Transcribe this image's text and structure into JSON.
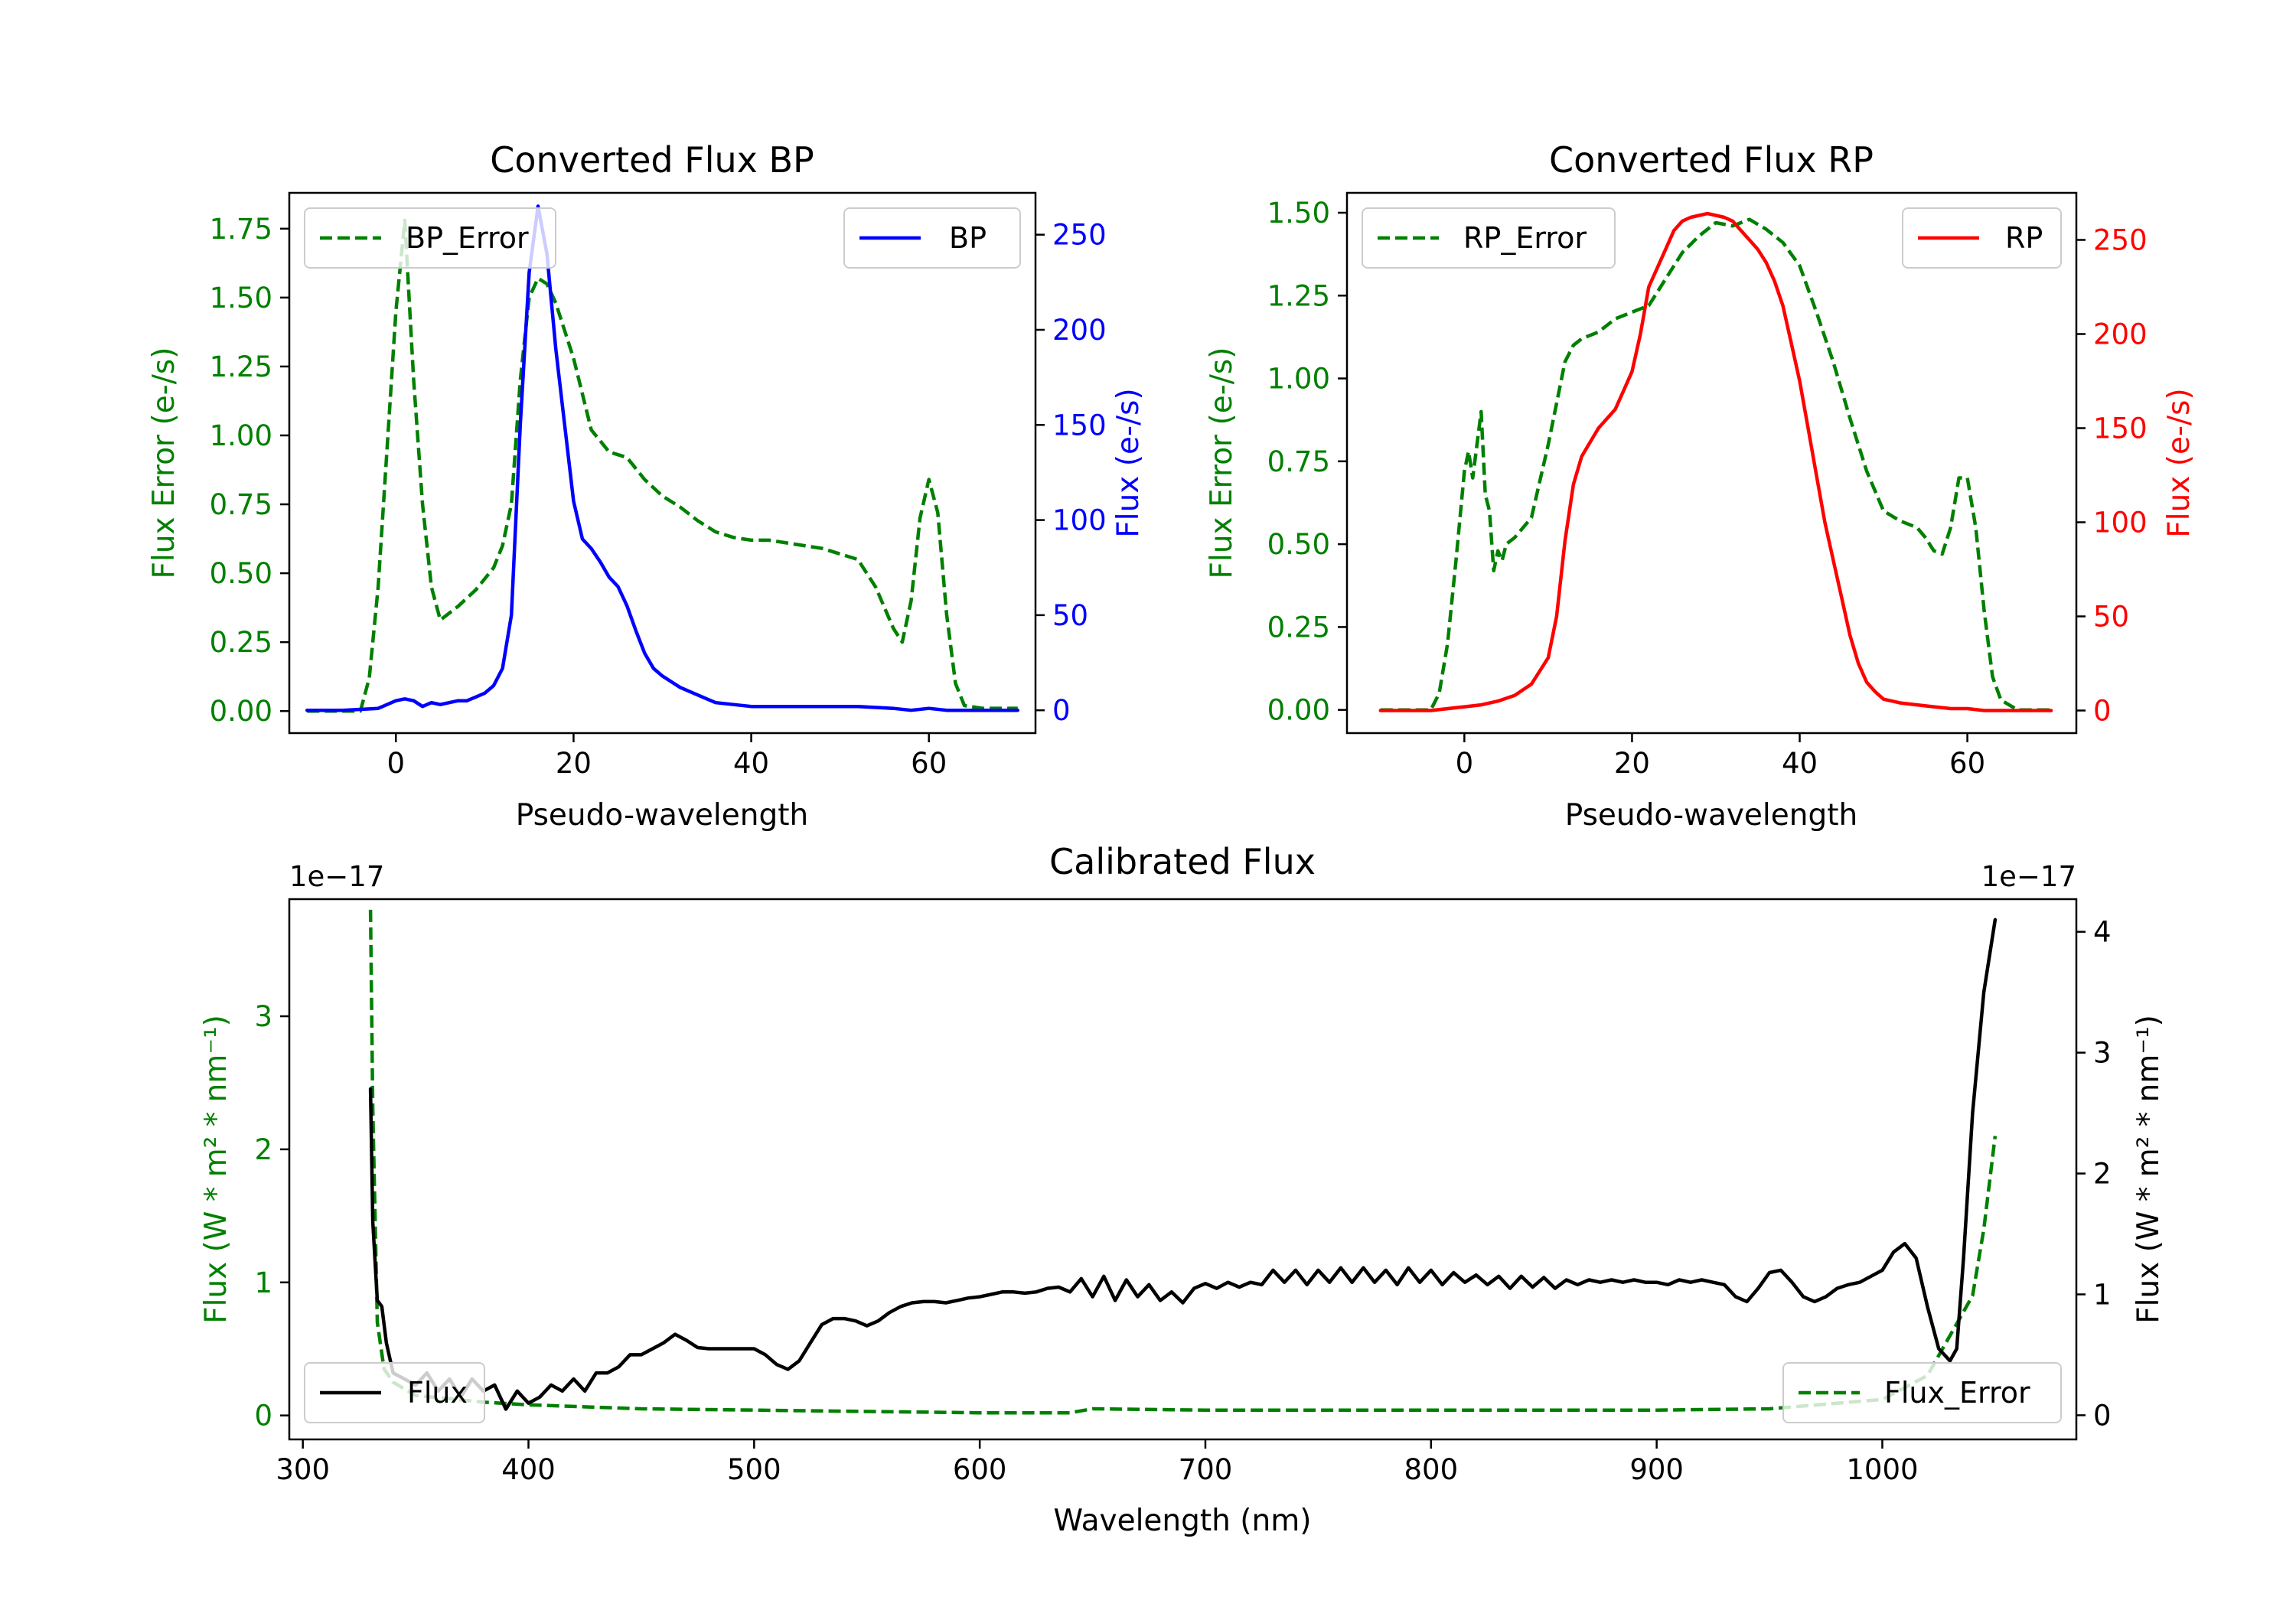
{
  "chart_data": [
    {
      "id": "bp",
      "type": "line",
      "title": "Converted Flux BP",
      "xlabel": "Pseudo-wavelength",
      "xlim": [
        -12,
        72
      ],
      "xticks": [
        0,
        20,
        40,
        60
      ],
      "left_axis": {
        "label": "Flux Error (e-/s)",
        "color": "#008000",
        "ylim": [
          -0.08,
          1.88
        ],
        "ticks": [
          0.0,
          0.25,
          0.5,
          0.75,
          1.0,
          1.25,
          1.5,
          1.75
        ],
        "tick_labels": [
          "0.00",
          "0.25",
          "0.50",
          "0.75",
          "1.00",
          "1.25",
          "1.50",
          "1.75"
        ]
      },
      "right_axis": {
        "label": "Flux (e-/s)",
        "color": "#0000ff",
        "ylim": [
          -12,
          272
        ],
        "ticks": [
          0,
          50,
          100,
          150,
          200,
          250
        ],
        "tick_labels": [
          "0",
          "50",
          "100",
          "150",
          "200",
          "250"
        ]
      },
      "series": [
        {
          "name": "BP_Error",
          "axis": "left",
          "color": "#008000",
          "dash": true,
          "x": [
            -10,
            -4,
            -3,
            -2,
            -1,
            0,
            1,
            2,
            3,
            4,
            5,
            7,
            9,
            11,
            12,
            13,
            14,
            15,
            16,
            17,
            18,
            19,
            20,
            21,
            22,
            23,
            24,
            25,
            26,
            27,
            28,
            30,
            32,
            34,
            36,
            38,
            40,
            42,
            44,
            46,
            48,
            50,
            52,
            54,
            56,
            57,
            58,
            59,
            60,
            61,
            62,
            63,
            64,
            66,
            68,
            70
          ],
          "values": [
            0.0,
            0.0,
            0.12,
            0.45,
            0.95,
            1.45,
            1.78,
            1.2,
            0.75,
            0.45,
            0.33,
            0.38,
            0.44,
            0.52,
            0.6,
            0.75,
            1.2,
            1.5,
            1.57,
            1.55,
            1.48,
            1.38,
            1.28,
            1.15,
            1.02,
            0.98,
            0.94,
            0.93,
            0.92,
            0.88,
            0.84,
            0.78,
            0.74,
            0.69,
            0.65,
            0.63,
            0.62,
            0.62,
            0.61,
            0.6,
            0.59,
            0.57,
            0.55,
            0.45,
            0.3,
            0.25,
            0.4,
            0.7,
            0.84,
            0.72,
            0.35,
            0.1,
            0.02,
            0.01,
            0.01,
            0.01
          ]
        },
        {
          "name": "BP",
          "axis": "right",
          "color": "#0000ff",
          "dash": false,
          "x": [
            -10,
            -6,
            -2,
            0,
            1,
            2,
            3,
            4,
            5,
            6,
            7,
            8,
            9,
            10,
            11,
            12,
            13,
            14,
            15,
            16,
            17,
            18,
            19,
            20,
            21,
            22,
            23,
            24,
            25,
            26,
            27,
            28,
            29,
            30,
            31,
            32,
            33,
            34,
            35,
            36,
            38,
            40,
            44,
            48,
            52,
            56,
            58,
            60,
            62,
            64,
            66,
            68,
            70
          ],
          "values": [
            0,
            0,
            1,
            5,
            6,
            5,
            2,
            4,
            3,
            4,
            5,
            5,
            7,
            9,
            13,
            22,
            50,
            150,
            230,
            265,
            240,
            190,
            150,
            110,
            90,
            85,
            78,
            70,
            65,
            55,
            42,
            30,
            22,
            18,
            15,
            12,
            10,
            8,
            6,
            4,
            3,
            2,
            2,
            2,
            2,
            1,
            0,
            1,
            0,
            0,
            0,
            0,
            0
          ]
        }
      ],
      "legends": [
        {
          "name": "BP_Error",
          "location": "upper left"
        },
        {
          "name": "BP",
          "location": "upper right"
        }
      ]
    },
    {
      "id": "rp",
      "type": "line",
      "title": "Converted Flux RP",
      "xlabel": "Pseudo-wavelength",
      "xlim": [
        -14,
        73
      ],
      "xticks": [
        0,
        20,
        40,
        60
      ],
      "left_axis": {
        "label": "Flux Error (e-/s)",
        "color": "#008000",
        "ylim": [
          -0.07,
          1.56
        ],
        "ticks": [
          0.0,
          0.25,
          0.5,
          0.75,
          1.0,
          1.25,
          1.5
        ],
        "tick_labels": [
          "0.00",
          "0.25",
          "0.50",
          "0.75",
          "1.00",
          "1.25",
          "1.50"
        ]
      },
      "right_axis": {
        "label": "Flux (e-/s)",
        "color": "#ff0000",
        "ylim": [
          -12,
          275
        ],
        "ticks": [
          0,
          50,
          100,
          150,
          200,
          250
        ],
        "tick_labels": [
          "0",
          "50",
          "100",
          "150",
          "200",
          "250"
        ]
      },
      "series": [
        {
          "name": "RP_Error",
          "axis": "left",
          "color": "#008000",
          "dash": true,
          "x": [
            -10,
            -4,
            -3,
            -2,
            -1,
            0,
            0.5,
            1,
            1.5,
            2,
            2.5,
            3,
            3.5,
            4,
            4.5,
            5,
            6,
            8,
            10,
            12,
            13,
            14,
            16,
            18,
            20,
            22,
            24,
            26,
            28,
            30,
            32,
            34,
            36,
            38,
            40,
            42,
            44,
            46,
            48,
            50,
            52,
            54,
            55,
            56,
            57,
            58,
            59,
            60,
            61,
            62,
            63,
            64,
            66,
            68,
            70
          ],
          "values": [
            0.0,
            0.0,
            0.05,
            0.2,
            0.45,
            0.72,
            0.78,
            0.7,
            0.8,
            0.9,
            0.65,
            0.6,
            0.42,
            0.48,
            0.45,
            0.5,
            0.52,
            0.58,
            0.8,
            1.05,
            1.1,
            1.12,
            1.14,
            1.18,
            1.2,
            1.22,
            1.3,
            1.38,
            1.43,
            1.47,
            1.46,
            1.48,
            1.45,
            1.41,
            1.34,
            1.2,
            1.05,
            0.88,
            0.72,
            0.6,
            0.57,
            0.55,
            0.52,
            0.48,
            0.47,
            0.55,
            0.7,
            0.7,
            0.55,
            0.3,
            0.1,
            0.03,
            0.0,
            0.0,
            0.0
          ]
        },
        {
          "name": "RP",
          "axis": "right",
          "color": "#ff0000",
          "dash": false,
          "x": [
            -10,
            -4,
            0,
            2,
            4,
            6,
            8,
            10,
            11,
            12,
            13,
            14,
            16,
            18,
            19,
            20,
            21,
            22,
            23,
            24,
            25,
            26,
            27,
            28,
            29,
            30,
            31,
            32,
            33,
            34,
            35,
            36,
            37,
            38,
            39,
            40,
            41,
            42,
            43,
            44,
            45,
            46,
            47,
            48,
            49,
            50,
            52,
            54,
            56,
            58,
            60,
            62,
            64,
            66,
            68,
            70
          ],
          "values": [
            0,
            0,
            2,
            3,
            5,
            8,
            14,
            28,
            50,
            90,
            120,
            135,
            150,
            160,
            170,
            180,
            200,
            225,
            235,
            245,
            255,
            260,
            262,
            263,
            264,
            263,
            262,
            260,
            255,
            250,
            245,
            238,
            228,
            215,
            195,
            175,
            150,
            125,
            100,
            80,
            60,
            40,
            25,
            15,
            10,
            6,
            4,
            3,
            2,
            1,
            1,
            0,
            0,
            0,
            0,
            0
          ]
        }
      ],
      "legends": [
        {
          "name": "RP_Error",
          "location": "upper left"
        },
        {
          "name": "RP",
          "location": "upper right"
        }
      ]
    },
    {
      "id": "calib",
      "type": "line",
      "title": "Calibrated Flux",
      "xlabel": "Wavelength (nm)",
      "xlim": [
        294,
        1086
      ],
      "xticks": [
        300,
        400,
        500,
        600,
        700,
        800,
        900,
        1000
      ],
      "offset_text_left": "1e−17",
      "offset_text_right": "1e−17",
      "left_axis": {
        "label": "Flux (W * m² * nm⁻¹)",
        "color": "#008000",
        "ylim": [
          -0.18,
          3.88
        ],
        "ticks": [
          0,
          1,
          2,
          3
        ],
        "tick_labels": [
          "0",
          "1",
          "2",
          "3"
        ]
      },
      "right_axis": {
        "label": "Flux (W * m² * nm⁻¹)",
        "color": "#000000",
        "ylim": [
          -0.2,
          4.27
        ],
        "ticks": [
          0,
          1,
          2,
          3,
          4
        ],
        "tick_labels": [
          "0",
          "1",
          "2",
          "3",
          "4"
        ]
      },
      "series": [
        {
          "name": "Flux_Error",
          "axis": "left",
          "color": "#008000",
          "dash": true,
          "x": [
            330,
            331,
            333,
            336,
            340,
            350,
            380,
            400,
            450,
            500,
            550,
            600,
            640,
            650,
            700,
            800,
            900,
            950,
            1000,
            1020,
            1030,
            1040,
            1045,
            1050
          ],
          "values": [
            3.8,
            2.3,
            0.7,
            0.35,
            0.25,
            0.15,
            0.1,
            0.08,
            0.05,
            0.04,
            0.03,
            0.02,
            0.02,
            0.05,
            0.04,
            0.04,
            0.04,
            0.05,
            0.12,
            0.3,
            0.6,
            0.9,
            1.4,
            2.1
          ]
        },
        {
          "name": "Flux",
          "axis": "right",
          "color": "#000000",
          "dash": false,
          "x": [
            330,
            331,
            333,
            335,
            337,
            340,
            345,
            350,
            355,
            360,
            365,
            370,
            375,
            380,
            385,
            390,
            395,
            400,
            405,
            410,
            415,
            420,
            425,
            430,
            435,
            440,
            445,
            450,
            455,
            460,
            465,
            470,
            475,
            480,
            490,
            500,
            505,
            510,
            515,
            520,
            525,
            530,
            535,
            540,
            545,
            550,
            555,
            560,
            565,
            570,
            575,
            580,
            585,
            590,
            595,
            600,
            605,
            610,
            615,
            620,
            625,
            630,
            635,
            640,
            645,
            650,
            655,
            660,
            665,
            670,
            675,
            680,
            685,
            690,
            695,
            700,
            705,
            710,
            715,
            720,
            725,
            730,
            735,
            740,
            745,
            750,
            755,
            760,
            765,
            770,
            775,
            780,
            785,
            790,
            795,
            800,
            805,
            810,
            815,
            820,
            825,
            830,
            835,
            840,
            845,
            850,
            855,
            860,
            865,
            870,
            875,
            880,
            885,
            890,
            895,
            900,
            905,
            910,
            915,
            920,
            925,
            930,
            935,
            940,
            945,
            950,
            955,
            960,
            965,
            970,
            975,
            980,
            985,
            990,
            995,
            1000,
            1005,
            1010,
            1015,
            1020,
            1025,
            1030,
            1033,
            1036,
            1040,
            1045,
            1050
          ],
          "values": [
            2.7,
            1.6,
            0.95,
            0.9,
            0.6,
            0.35,
            0.3,
            0.25,
            0.35,
            0.2,
            0.3,
            0.15,
            0.3,
            0.2,
            0.25,
            0.05,
            0.2,
            0.1,
            0.15,
            0.25,
            0.2,
            0.3,
            0.2,
            0.35,
            0.35,
            0.4,
            0.5,
            0.5,
            0.55,
            0.6,
            0.67,
            0.62,
            0.56,
            0.55,
            0.55,
            0.55,
            0.5,
            0.42,
            0.38,
            0.45,
            0.6,
            0.75,
            0.8,
            0.8,
            0.78,
            0.74,
            0.78,
            0.85,
            0.9,
            0.93,
            0.94,
            0.94,
            0.93,
            0.95,
            0.97,
            0.98,
            1.0,
            1.02,
            1.02,
            1.01,
            1.02,
            1.05,
            1.06,
            1.02,
            1.13,
            0.98,
            1.15,
            0.95,
            1.12,
            0.98,
            1.08,
            0.95,
            1.02,
            0.93,
            1.05,
            1.09,
            1.05,
            1.1,
            1.06,
            1.1,
            1.08,
            1.2,
            1.1,
            1.2,
            1.08,
            1.2,
            1.1,
            1.22,
            1.1,
            1.22,
            1.1,
            1.2,
            1.08,
            1.22,
            1.1,
            1.2,
            1.08,
            1.18,
            1.1,
            1.16,
            1.08,
            1.15,
            1.05,
            1.15,
            1.06,
            1.14,
            1.05,
            1.12,
            1.08,
            1.12,
            1.1,
            1.12,
            1.1,
            1.12,
            1.1,
            1.1,
            1.08,
            1.12,
            1.1,
            1.12,
            1.1,
            1.08,
            0.98,
            0.94,
            1.05,
            1.18,
            1.2,
            1.1,
            0.98,
            0.94,
            0.98,
            1.05,
            1.08,
            1.1,
            1.15,
            1.2,
            1.35,
            1.42,
            1.3,
            0.9,
            0.55,
            0.45,
            0.55,
            1.3,
            2.5,
            3.5,
            4.1
          ]
        }
      ],
      "legends": [
        {
          "name": "Flux",
          "location": "lower left"
        },
        {
          "name": "Flux_Error",
          "location": "lower right"
        }
      ]
    }
  ]
}
